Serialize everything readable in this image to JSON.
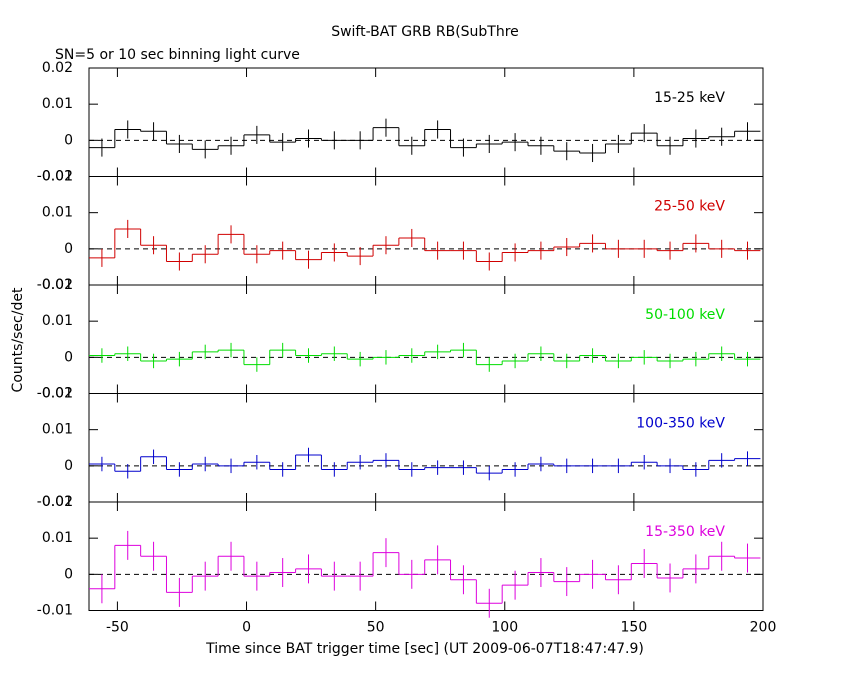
{
  "figure": {
    "title": "Swift-BAT GRB RB(SubThre",
    "subtitle": "SN=5 or 10 sec binning light curve",
    "xlabel": "Time since BAT trigger time [sec] (UT 2009-06-07T18:47:47.9)",
    "ylabel": "Counts/sec/det"
  },
  "chart_data": [
    {
      "type": "step",
      "xlim": [
        -61,
        200
      ],
      "ylim": [
        -0.01,
        0.02
      ],
      "yticks": [
        -0.01,
        0,
        0.01,
        0.02
      ],
      "xticks": [
        -50,
        0,
        50,
        100,
        150,
        200
      ],
      "x": [
        -56,
        -46,
        -36,
        -26,
        -16,
        -6,
        4,
        14,
        24,
        34,
        44,
        54,
        64,
        74,
        84,
        94,
        104,
        114,
        124,
        134,
        144,
        154,
        164,
        174,
        184,
        194
      ],
      "series": [
        {
          "name": "15-25 keV",
          "color": "#000000",
          "values": [
            -0.002,
            0.003,
            0.0025,
            -0.001,
            -0.0025,
            -0.0015,
            0.0015,
            -0.0005,
            0.0005,
            0,
            0,
            0.0035,
            -0.0015,
            0.003,
            -0.002,
            -0.001,
            -0.0005,
            -0.0015,
            -0.003,
            -0.0035,
            -0.001,
            0.002,
            -0.0015,
            0.0005,
            0.001,
            0.0025
          ],
          "errors": [
            0.0025,
            0.0025,
            0.0025,
            0.0025,
            0.0025,
            0.0025,
            0.0025,
            0.0025,
            0.0025,
            0.0025,
            0.0025,
            0.0025,
            0.0025,
            0.0025,
            0.0025,
            0.0025,
            0.0025,
            0.0025,
            0.0025,
            0.0025,
            0.0025,
            0.0025,
            0.0025,
            0.0025,
            0.0025,
            0.0025
          ]
        }
      ]
    },
    {
      "type": "step",
      "xlim": [
        -61,
        200
      ],
      "ylim": [
        -0.01,
        0.02
      ],
      "yticks": [
        -0.01,
        0,
        0.01,
        0.02
      ],
      "xticks": [
        -50,
        0,
        50,
        100,
        150,
        200
      ],
      "x": [
        -56,
        -46,
        -36,
        -26,
        -16,
        -6,
        4,
        14,
        24,
        34,
        44,
        54,
        64,
        74,
        84,
        94,
        104,
        114,
        124,
        134,
        144,
        154,
        164,
        174,
        184,
        194
      ],
      "series": [
        {
          "name": "25-50 keV",
          "color": "#d00000",
          "values": [
            -0.0025,
            0.0055,
            0.001,
            -0.0035,
            -0.0015,
            0.004,
            -0.0015,
            -0.0005,
            -0.003,
            -0.001,
            -0.002,
            0.001,
            0.003,
            -0.0005,
            -0.0005,
            -0.0035,
            -0.001,
            -0.0005,
            0.0005,
            0.0015,
            0,
            0,
            -0.0005,
            0.0015,
            0,
            -0.0005
          ],
          "errors": [
            0.0025,
            0.0025,
            0.0025,
            0.0025,
            0.0025,
            0.0025,
            0.0025,
            0.0025,
            0.0025,
            0.0025,
            0.0025,
            0.0025,
            0.0025,
            0.0025,
            0.0025,
            0.0025,
            0.0025,
            0.0025,
            0.0025,
            0.0025,
            0.0025,
            0.0025,
            0.0025,
            0.0025,
            0.0025,
            0.0025
          ]
        }
      ]
    },
    {
      "type": "step",
      "xlim": [
        -61,
        200
      ],
      "ylim": [
        -0.01,
        0.02
      ],
      "yticks": [
        -0.01,
        0,
        0.01,
        0.02
      ],
      "xticks": [
        -50,
        0,
        50,
        100,
        150,
        200
      ],
      "x": [
        -56,
        -46,
        -36,
        -26,
        -16,
        -6,
        4,
        14,
        24,
        34,
        44,
        54,
        64,
        74,
        84,
        94,
        104,
        114,
        124,
        134,
        144,
        154,
        164,
        174,
        184,
        194
      ],
      "series": [
        {
          "name": "50-100 keV",
          "color": "#00dd00",
          "values": [
            0.0005,
            0.001,
            -0.001,
            -0.0005,
            0.0015,
            0.002,
            -0.002,
            0.002,
            0.0005,
            0.001,
            -0.0005,
            0,
            0.0005,
            0.0015,
            0.002,
            -0.002,
            -0.001,
            0.001,
            -0.001,
            0.0005,
            -0.001,
            0,
            -0.001,
            -0.0005,
            0.001,
            -0.0005
          ],
          "errors": [
            0.002,
            0.002,
            0.002,
            0.002,
            0.002,
            0.002,
            0.002,
            0.002,
            0.002,
            0.002,
            0.002,
            0.002,
            0.002,
            0.002,
            0.002,
            0.002,
            0.002,
            0.002,
            0.002,
            0.002,
            0.002,
            0.002,
            0.002,
            0.002,
            0.002,
            0.002
          ]
        }
      ]
    },
    {
      "type": "step",
      "xlim": [
        -61,
        200
      ],
      "ylim": [
        -0.01,
        0.02
      ],
      "yticks": [
        -0.01,
        0,
        0.01,
        0.02
      ],
      "xticks": [
        -50,
        0,
        50,
        100,
        150,
        200
      ],
      "x": [
        -56,
        -46,
        -36,
        -26,
        -16,
        -6,
        4,
        14,
        24,
        34,
        44,
        54,
        64,
        74,
        84,
        94,
        104,
        114,
        124,
        134,
        144,
        154,
        164,
        174,
        184,
        194
      ],
      "series": [
        {
          "name": "100-350 keV",
          "color": "#0000cc",
          "values": [
            0.0005,
            -0.0015,
            0.0025,
            -0.001,
            0.0005,
            0,
            0.001,
            -0.001,
            0.003,
            -0.001,
            0.001,
            0.0015,
            -0.001,
            -0.0005,
            -0.0005,
            -0.002,
            -0.001,
            0.0005,
            0,
            0,
            0,
            0.001,
            0,
            -0.001,
            0.0015,
            0.002
          ],
          "errors": [
            0.002,
            0.002,
            0.002,
            0.002,
            0.002,
            0.002,
            0.002,
            0.002,
            0.002,
            0.002,
            0.002,
            0.002,
            0.002,
            0.002,
            0.002,
            0.002,
            0.002,
            0.002,
            0.002,
            0.002,
            0.002,
            0.002,
            0.002,
            0.002,
            0.002,
            0.002
          ]
        }
      ]
    },
    {
      "type": "step",
      "xlim": [
        -61,
        200
      ],
      "ylim": [
        -0.01,
        0.02
      ],
      "yticks": [
        -0.01,
        0,
        0.01,
        0.02
      ],
      "xticks": [
        -50,
        0,
        50,
        100,
        150,
        200
      ],
      "x": [
        -56,
        -46,
        -36,
        -26,
        -16,
        -6,
        4,
        14,
        24,
        34,
        44,
        54,
        64,
        74,
        84,
        94,
        104,
        114,
        124,
        134,
        144,
        154,
        164,
        174,
        184,
        194
      ],
      "series": [
        {
          "name": "15-350 keV",
          "color": "#dd00dd",
          "values": [
            -0.004,
            0.008,
            0.005,
            -0.005,
            -0.0005,
            0.005,
            -0.0005,
            0.0005,
            0.0015,
            -0.0005,
            -0.0005,
            0.006,
            0,
            0.004,
            -0.0015,
            -0.008,
            -0.003,
            0.0005,
            -0.002,
            0,
            -0.0015,
            0.003,
            -0.001,
            0.0015,
            0.005,
            0.0045
          ],
          "errors": [
            0.004,
            0.004,
            0.004,
            0.004,
            0.004,
            0.004,
            0.004,
            0.004,
            0.004,
            0.004,
            0.004,
            0.004,
            0.004,
            0.004,
            0.004,
            0.004,
            0.004,
            0.004,
            0.004,
            0.004,
            0.004,
            0.004,
            0.004,
            0.004,
            0.004,
            0.004
          ]
        }
      ]
    }
  ]
}
